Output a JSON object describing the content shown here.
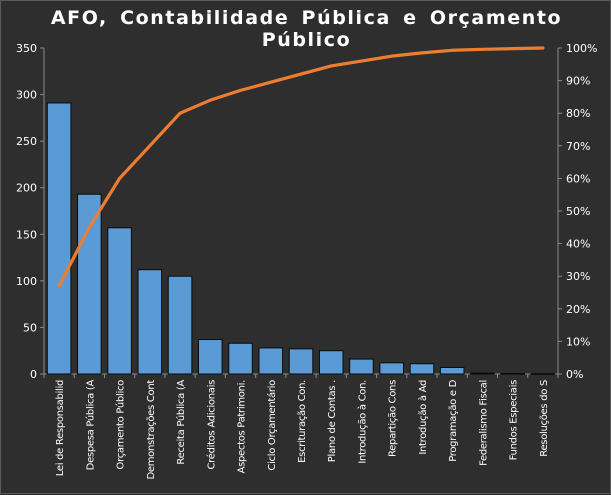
{
  "chart_data": {
    "type": "bar",
    "title": "AFO, Contabilidade  Pública  e Orçamento  Público",
    "categories": [
      "Lei de Responsabilid",
      "Despesa Pública (A",
      "Orçamento Público",
      "Demonstrações Cont",
      "Receita Pública (A",
      "Créditos Adicionais",
      "Aspectos Patrimoni.",
      "Ciclo Orçamentário",
      "Escrituração Con.",
      "Plano de Contas .",
      "Introdução à Con.",
      "Repartição Cons",
      "Introdução à Ad",
      "Programação e D",
      "Federalismo Fiscal",
      "Fundos Especiais",
      "Resoluções do S"
    ],
    "series": [
      {
        "values": [
          291,
          193,
          157,
          112,
          105,
          37,
          33,
          28,
          27,
          25,
          16,
          12,
          11,
          7,
          1,
          0.5,
          0.3
        ]
      },
      {
        "axis": "right",
        "values": [
          27,
          45,
          60,
          70,
          80,
          84,
          87,
          89.5,
          92,
          94.5,
          96,
          97.5,
          98.5,
          99.3,
          99.6,
          99.8,
          100
        ]
      }
    ],
    "ylim": [
      0,
      350
    ],
    "yticks": [
      0,
      50,
      100,
      150,
      200,
      250,
      300,
      350
    ],
    "y2lim": [
      0,
      100
    ],
    "y2ticks": [
      "0%",
      "10%",
      "20%",
      "30%",
      "40%",
      "50%",
      "60%",
      "70%",
      "80%",
      "90%",
      "100%"
    ],
    "grid": false,
    "legend": "none",
    "colors": {
      "background": "#2e2e2e",
      "bar_fill": "#5b9bd5",
      "bar_stroke": "#0a0a0a",
      "line": "#ed7d31",
      "axis": "#8a8a8a",
      "text": "#ffffff"
    }
  }
}
